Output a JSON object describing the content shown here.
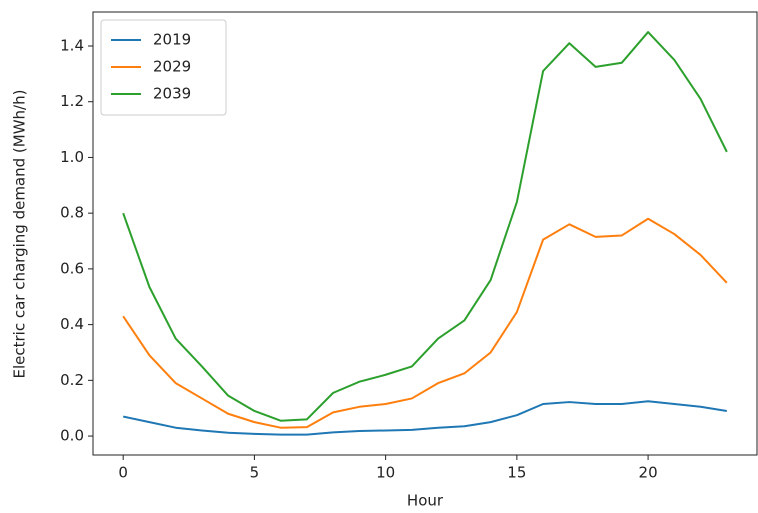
{
  "chart_data": {
    "type": "line",
    "xlabel": "Hour",
    "ylabel": "Electric car charging demand (MWh/h)",
    "x": [
      0,
      1,
      2,
      3,
      4,
      5,
      6,
      7,
      8,
      9,
      10,
      11,
      12,
      13,
      14,
      15,
      16,
      17,
      18,
      19,
      20,
      21,
      22,
      23
    ],
    "series": [
      {
        "name": "2019",
        "color": "#1f77b4",
        "values": [
          0.07,
          0.05,
          0.03,
          0.02,
          0.012,
          0.008,
          0.005,
          0.005,
          0.013,
          0.018,
          0.02,
          0.022,
          0.03,
          0.035,
          0.05,
          0.075,
          0.115,
          0.122,
          0.115,
          0.115,
          0.125,
          0.115,
          0.105,
          0.09
        ]
      },
      {
        "name": "2029",
        "color": "#ff7f0e",
        "values": [
          0.43,
          0.29,
          0.19,
          0.135,
          0.08,
          0.05,
          0.03,
          0.032,
          0.085,
          0.105,
          0.115,
          0.135,
          0.19,
          0.225,
          0.3,
          0.445,
          0.705,
          0.76,
          0.715,
          0.72,
          0.78,
          0.725,
          0.65,
          0.55
        ]
      },
      {
        "name": "2039",
        "color": "#2ca02c",
        "values": [
          0.8,
          0.535,
          0.35,
          0.25,
          0.145,
          0.09,
          0.055,
          0.06,
          0.155,
          0.195,
          0.22,
          0.25,
          0.35,
          0.415,
          0.56,
          0.84,
          1.31,
          1.41,
          1.325,
          1.34,
          1.45,
          1.35,
          1.21,
          1.02
        ]
      }
    ],
    "xlim": [
      -1.15,
      24.15
    ],
    "xticks": [
      0,
      5,
      10,
      15,
      20
    ],
    "ylim": [
      -0.068,
      1.522
    ],
    "yticks": [
      {
        "value": 0,
        "label": "0.0"
      },
      0.2,
      0.4,
      0.6,
      0.8,
      {
        "value": 1,
        "label": "1.0"
      },
      1.2,
      1.4
    ],
    "legend": "upper left",
    "grid": false
  }
}
